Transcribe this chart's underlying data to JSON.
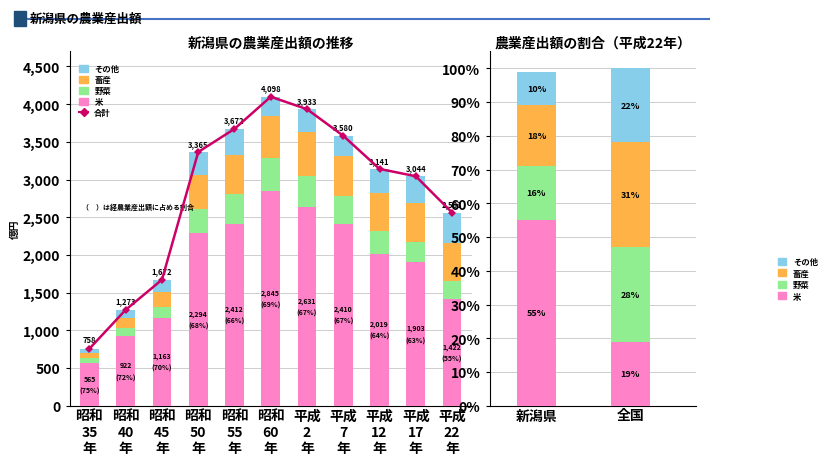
{
  "title_main": "■新潟県の農業産出額",
  "chart1_title": "新潟県の農業産出額の推移",
  "chart2_title": "農業産出額の割合（平成22年）",
  "ylabel": "億円",
  "years": [
    "昭和\n35\n年",
    "昭和\n40\n年",
    "昭和\n45\n年",
    "昭和\n50\n年",
    "昭和\n55\n年",
    "昭和\n60\n年",
    "平成\n2\n年",
    "平成\n7\n年",
    "平成\n12\n年",
    "平成\n17\n年",
    "平成\n22\n年"
  ],
  "totals": [
    758,
    1273,
    1672,
    3365,
    3672,
    4098,
    3933,
    3580,
    3141,
    3044,
    2563
  ],
  "rice": [
    565,
    922,
    1163,
    2294,
    2412,
    2845,
    2631,
    2410,
    2019,
    1903,
    1422
  ],
  "veg": [
    75,
    105,
    145,
    310,
    390,
    440,
    415,
    370,
    295,
    275,
    235
  ],
  "live": [
    65,
    135,
    205,
    455,
    525,
    555,
    585,
    535,
    505,
    505,
    505
  ],
  "rice_pct": [
    "(75%)",
    "(72%)",
    "(70%)",
    "(68%)",
    "(66%)",
    "(69%)",
    "(67%)",
    "(67%)",
    "(64%)",
    "(63%)",
    "(55%)"
  ],
  "color_rice": "#FF82C8",
  "color_veg": "#90EE90",
  "color_live": "#FFB347",
  "color_other": "#87CEEB",
  "color_line": "#CC0066",
  "note": "（　）は経農業産出額に占める割合",
  "bar2_niigata": [
    55,
    16,
    18,
    10
  ],
  "bar2_zenkoku": [
    19,
    28,
    31,
    22
  ],
  "bar2_labels_niigata": [
    "55%",
    "16%",
    "18%",
    "10%"
  ],
  "bar2_labels_zenkoku": [
    "19%",
    "28%",
    "31%",
    "22%"
  ],
  "legend1_labels": [
    "その他",
    "畜産",
    "野菜",
    "米",
    "合計"
  ],
  "legend2_labels": [
    "その他",
    "畜産",
    "野菜",
    "米"
  ],
  "bar2_categories": [
    "新潟県",
    "全国"
  ]
}
